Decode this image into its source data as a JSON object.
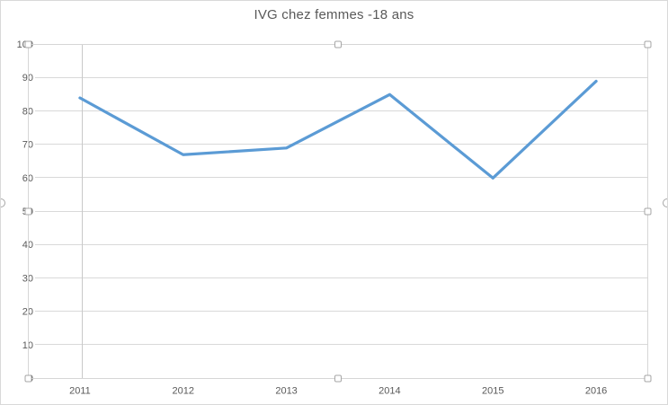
{
  "chart": {
    "title": "IVG chez femmes -18 ans"
  },
  "chart_data": {
    "type": "line",
    "title": "IVG chez femmes -18 ans",
    "categories": [
      "2011",
      "2012",
      "2013",
      "2014",
      "2015",
      "2016"
    ],
    "series": [
      {
        "name": "IVG chez femmes -18 ans",
        "values": [
          84,
          67,
          69,
          85,
          60,
          89
        ]
      }
    ],
    "xlabel": "",
    "ylabel": "",
    "ylim": [
      0,
      100
    ],
    "y_ticks": [
      0,
      10,
      20,
      30,
      40,
      50,
      60,
      70,
      80,
      90,
      100
    ],
    "grid": true,
    "legend_position": "none",
    "category_axis_between_ticks": true
  },
  "colors": {
    "background": "#FFFFFF",
    "line": "#5B9BD5",
    "gridline": "#D9D9D9",
    "axis_line": "#BFBFBF",
    "value_axis_line": "#C9C9C9",
    "tick_text": "#595959",
    "title_text": "#595959",
    "chart_border": "#D9D9D9",
    "selection_border": "#D6D6D6",
    "handle_fill": "#FFFFFF",
    "handle_border": "#A6A6A6"
  },
  "selection": {
    "plot_area_selected": true,
    "handle_count": 8
  }
}
